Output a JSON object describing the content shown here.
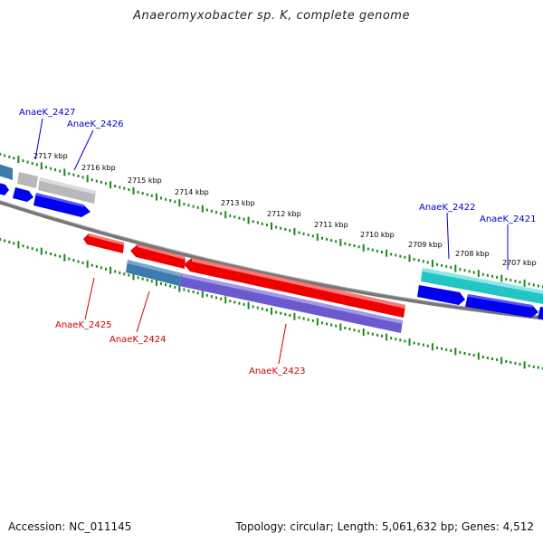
{
  "title": "Anaeromyxobacter sp. K, complete genome",
  "footer": {
    "accession": "Accession: NC_011145",
    "summary": "Topology: circular; Length: 5,061,632 bp; Genes: 4,512"
  },
  "colors": {
    "backbone": "#777777",
    "tick": "#1a8a1a",
    "cds_red": "#ee0000",
    "cds_blue": "#0000ee",
    "cds_steel": "#3d7ab0",
    "cds_gray": "#b0b0b0",
    "cds_violet": "#6a5acd",
    "cds_cyan": "#20c8c8",
    "label_blue": "#0000cc",
    "label_red": "#cc0000"
  },
  "kbp_labels": [
    "2717 kbp",
    "2716 kbp",
    "2715 kbp",
    "2714 kbp",
    "2713 kbp",
    "2712 kbp",
    "2711 kbp",
    "2710 kbp",
    "2709 kbp",
    "2708 kbp",
    "2707 kbp"
  ],
  "gene_labels": {
    "g2427": "AnaeK_2427",
    "g2426": "AnaeK_2426",
    "g2425": "AnaeK_2425",
    "g2424": "AnaeK_2424",
    "g2423": "AnaeK_2423",
    "g2422": "AnaeK_2422",
    "g2421": "AnaeK_2421"
  }
}
